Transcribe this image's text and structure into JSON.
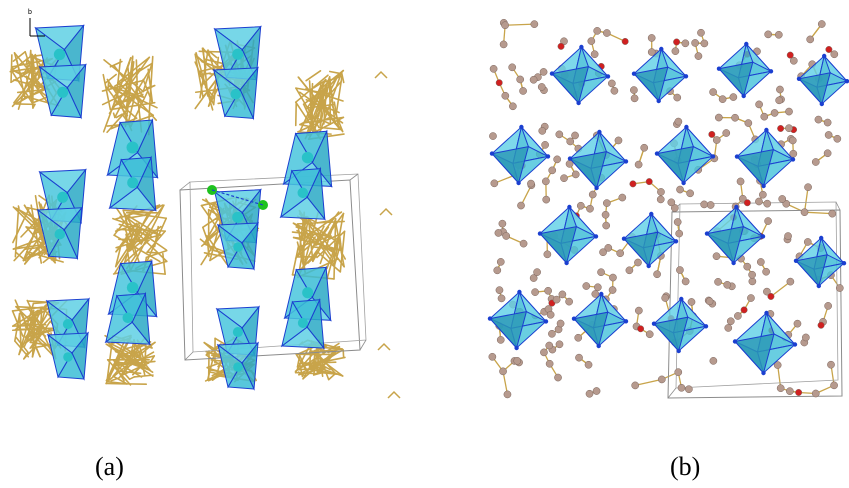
{
  "figure": {
    "panels": [
      {
        "id": "a",
        "label": "(a)",
        "polyhedron": "tetrahedron"
      },
      {
        "id": "b",
        "label": "(b)",
        "polyhedron": "octahedron"
      }
    ],
    "axis_label": "b",
    "colors": {
      "polyhedron_fill": "#35b9d3",
      "polyhedron_edge": "#1b3fd0",
      "bond": "#c8a44a",
      "atom": "#b69a8e",
      "oxygen": "#d02020",
      "chlorine": "#1ec21e",
      "cell_box": "#8c8c8c"
    }
  }
}
